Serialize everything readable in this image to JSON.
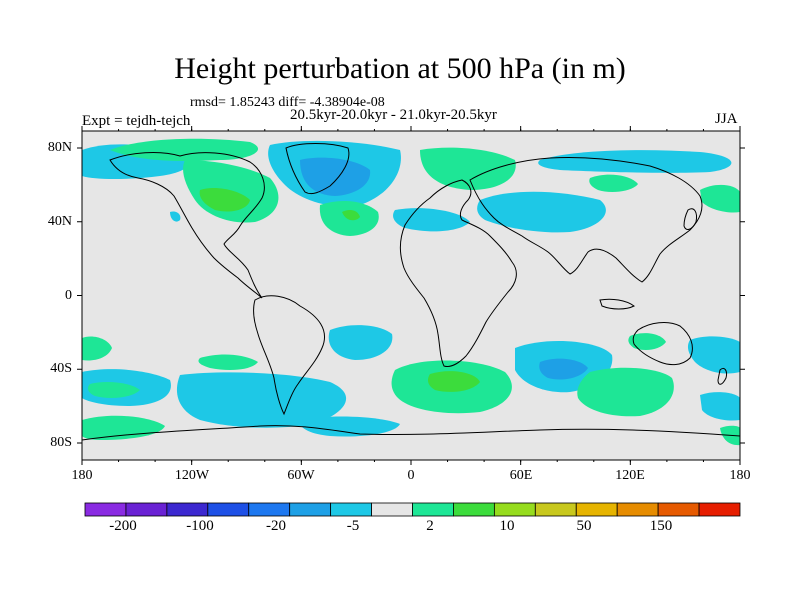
{
  "title": "Height perturbation at 500 hPa (in m)",
  "stats_line": "rmsd= 1.85243 diff= -4.38904e-08",
  "period_line": "20.5kyr-20.0kyr - 21.0kyr-20.5kyr",
  "experiment": "Expt = tejdh-tejch",
  "season": "JJA",
  "lat_labels": [
    "80N",
    "40N",
    "0",
    "40S",
    "80S"
  ],
  "lon_labels": [
    "180",
    "120W",
    "60W",
    "0",
    "60E",
    "120E",
    "180"
  ],
  "colorbar": {
    "labels": [
      "-200",
      "-100",
      "-20",
      "-5",
      "2",
      "10",
      "50",
      "150"
    ],
    "colors": [
      "#8a2be2",
      "#6a22d4",
      "#3c28d0",
      "#1e50e6",
      "#1e78f0",
      "#1ea0e6",
      "#1ec8e6",
      "#e6e6e6",
      "#1ee696",
      "#3cdc3c",
      "#96dc1e",
      "#c8c81e",
      "#e6b400",
      "#e68c00",
      "#e65a00",
      "#e61e00"
    ]
  },
  "map_colors": {
    "background": "#e6e6e6",
    "light_blue": "#1ec8e6",
    "blue": "#1ea0e6",
    "teal_green": "#1ee696",
    "green": "#3cdc3c"
  }
}
